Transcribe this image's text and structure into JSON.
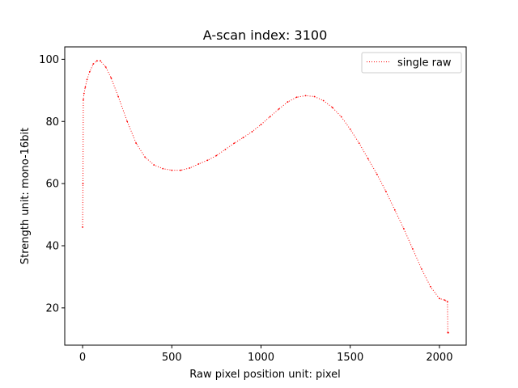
{
  "chart_data": {
    "type": "line",
    "title": "A-scan index: 3100",
    "xlabel": "Raw pixel position unit: pixel",
    "ylabel": "Strength unit: mono-16bit",
    "xlim": [
      -100,
      2150
    ],
    "ylim": [
      8,
      104
    ],
    "xticks": [
      0,
      500,
      1000,
      1500,
      2000
    ],
    "yticks": [
      20,
      40,
      60,
      80,
      100
    ],
    "grid": false,
    "legend": {
      "placement": "top-right",
      "entries": [
        "single raw"
      ]
    },
    "series": [
      {
        "name": "single raw",
        "color": "#ff0000",
        "linestyle": "dotted-with-point-markers",
        "x": [
          0,
          2,
          4,
          8,
          15,
          25,
          40,
          60,
          80,
          100,
          130,
          160,
          200,
          250,
          300,
          350,
          400,
          450,
          500,
          550,
          600,
          650,
          700,
          750,
          800,
          850,
          900,
          950,
          1000,
          1050,
          1100,
          1150,
          1200,
          1250,
          1300,
          1350,
          1400,
          1450,
          1500,
          1550,
          1600,
          1650,
          1700,
          1750,
          1800,
          1850,
          1900,
          1950,
          2000,
          2030,
          2045,
          2047,
          2050
        ],
        "y": [
          46,
          60,
          87,
          89,
          91,
          93.5,
          96,
          98.5,
          99.5,
          99.5,
          97.5,
          94,
          88,
          80,
          73,
          68.5,
          66,
          64.8,
          64.3,
          64.3,
          65,
          66.3,
          67.5,
          69,
          71,
          73,
          74.8,
          76.7,
          79,
          81.5,
          84,
          86.3,
          87.8,
          88.3,
          88,
          86.7,
          84.5,
          81.5,
          77.5,
          73,
          68,
          63,
          57.5,
          51.5,
          45.5,
          39,
          32.5,
          26.8,
          23,
          22.5,
          22,
          12,
          12
        ]
      }
    ]
  }
}
